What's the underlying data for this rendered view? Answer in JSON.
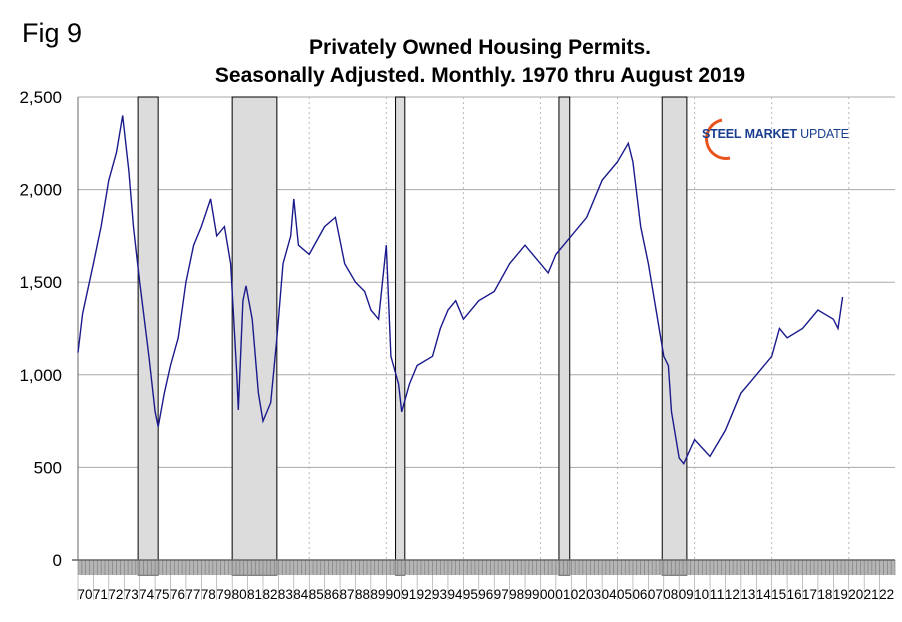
{
  "figure_label": "Fig 9",
  "logo": {
    "word1": "STEEL",
    "word2": "MARKET",
    "word3": "UPDATE"
  },
  "chart_data": {
    "type": "line",
    "title": "Privately Owned Housing Permits.",
    "subtitle": "Seasonally Adjusted. Monthly. 1970 thru August 2019",
    "xlabel": "",
    "ylabel": "",
    "xlim": [
      1970,
      2023
    ],
    "ylim": [
      0,
      2500
    ],
    "yticks": [
      0,
      500,
      1000,
      1500,
      2000,
      2500
    ],
    "ytick_labels": [
      "0",
      "500",
      "1,000",
      "1,500",
      "2,000",
      "2,500"
    ],
    "xtick_labels": [
      "70",
      "71",
      "72",
      "73",
      "74",
      "75",
      "76",
      "77",
      "78",
      "79",
      "80",
      "81",
      "82",
      "83",
      "84",
      "85",
      "86",
      "87",
      "88",
      "89",
      "90",
      "91",
      "92",
      "93",
      "94",
      "95",
      "96",
      "97",
      "98",
      "99",
      "00",
      "01",
      "02",
      "03",
      "04",
      "05",
      "06",
      "07",
      "08",
      "09",
      "10",
      "11",
      "12",
      "13",
      "14",
      "15",
      "16",
      "17",
      "18",
      "19",
      "20",
      "21",
      "22"
    ],
    "grid": true,
    "line_color": "#1a1a8c",
    "recession_color": "#dcdcdc",
    "recessions": [
      [
        1973.9,
        1975.2
      ],
      [
        1980.0,
        1982.9
      ],
      [
        1990.6,
        1991.2
      ],
      [
        2001.2,
        2001.9
      ],
      [
        2007.9,
        2009.5
      ]
    ],
    "series": [
      {
        "points": [
          [
            1970.0,
            1120
          ],
          [
            1970.3,
            1330
          ],
          [
            1971.0,
            1600
          ],
          [
            1971.5,
            1800
          ],
          [
            1972.0,
            2050
          ],
          [
            1972.5,
            2200
          ],
          [
            1972.9,
            2400
          ],
          [
            1973.3,
            2100
          ],
          [
            1973.6,
            1800
          ],
          [
            1974.0,
            1500
          ],
          [
            1974.3,
            1300
          ],
          [
            1974.6,
            1100
          ],
          [
            1975.0,
            800
          ],
          [
            1975.2,
            720
          ],
          [
            1975.6,
            900
          ],
          [
            1976.0,
            1050
          ],
          [
            1976.5,
            1200
          ],
          [
            1977.0,
            1500
          ],
          [
            1977.5,
            1700
          ],
          [
            1978.0,
            1800
          ],
          [
            1978.6,
            1950
          ],
          [
            1979.0,
            1750
          ],
          [
            1979.5,
            1800
          ],
          [
            1979.9,
            1600
          ],
          [
            1980.3,
            1000
          ],
          [
            1980.4,
            810
          ],
          [
            1980.7,
            1400
          ],
          [
            1980.9,
            1480
          ],
          [
            1981.3,
            1300
          ],
          [
            1981.7,
            900
          ],
          [
            1982.0,
            750
          ],
          [
            1982.5,
            850
          ],
          [
            1982.9,
            1200
          ],
          [
            1983.3,
            1600
          ],
          [
            1983.8,
            1750
          ],
          [
            1984.0,
            1950
          ],
          [
            1984.3,
            1700
          ],
          [
            1985.0,
            1650
          ],
          [
            1986.0,
            1800
          ],
          [
            1986.7,
            1850
          ],
          [
            1987.3,
            1600
          ],
          [
            1988.0,
            1500
          ],
          [
            1988.6,
            1450
          ],
          [
            1989.0,
            1350
          ],
          [
            1989.5,
            1300
          ],
          [
            1990.0,
            1700
          ],
          [
            1990.3,
            1100
          ],
          [
            1990.8,
            950
          ],
          [
            1991.0,
            800
          ],
          [
            1991.5,
            950
          ],
          [
            1992.0,
            1050
          ],
          [
            1993.0,
            1100
          ],
          [
            1993.5,
            1250
          ],
          [
            1994.0,
            1350
          ],
          [
            1994.5,
            1400
          ],
          [
            1995.0,
            1300
          ],
          [
            1996.0,
            1400
          ],
          [
            1997.0,
            1450
          ],
          [
            1998.0,
            1600
          ],
          [
            1999.0,
            1700
          ],
          [
            2000.0,
            1600
          ],
          [
            2000.5,
            1550
          ],
          [
            2001.0,
            1650
          ],
          [
            2002.0,
            1750
          ],
          [
            2003.0,
            1850
          ],
          [
            2004.0,
            2050
          ],
          [
            2005.0,
            2150
          ],
          [
            2005.7,
            2250
          ],
          [
            2006.0,
            2150
          ],
          [
            2006.5,
            1800
          ],
          [
            2007.0,
            1600
          ],
          [
            2007.5,
            1350
          ],
          [
            2008.0,
            1100
          ],
          [
            2008.3,
            1050
          ],
          [
            2008.5,
            800
          ],
          [
            2009.0,
            550
          ],
          [
            2009.3,
            520
          ],
          [
            2010.0,
            650
          ],
          [
            2011.0,
            560
          ],
          [
            2012.0,
            700
          ],
          [
            2013.0,
            900
          ],
          [
            2014.0,
            1000
          ],
          [
            2015.0,
            1100
          ],
          [
            2015.5,
            1250
          ],
          [
            2016.0,
            1200
          ],
          [
            2017.0,
            1250
          ],
          [
            2018.0,
            1350
          ],
          [
            2019.0,
            1300
          ],
          [
            2019.3,
            1250
          ],
          [
            2019.6,
            1420
          ]
        ]
      }
    ]
  }
}
